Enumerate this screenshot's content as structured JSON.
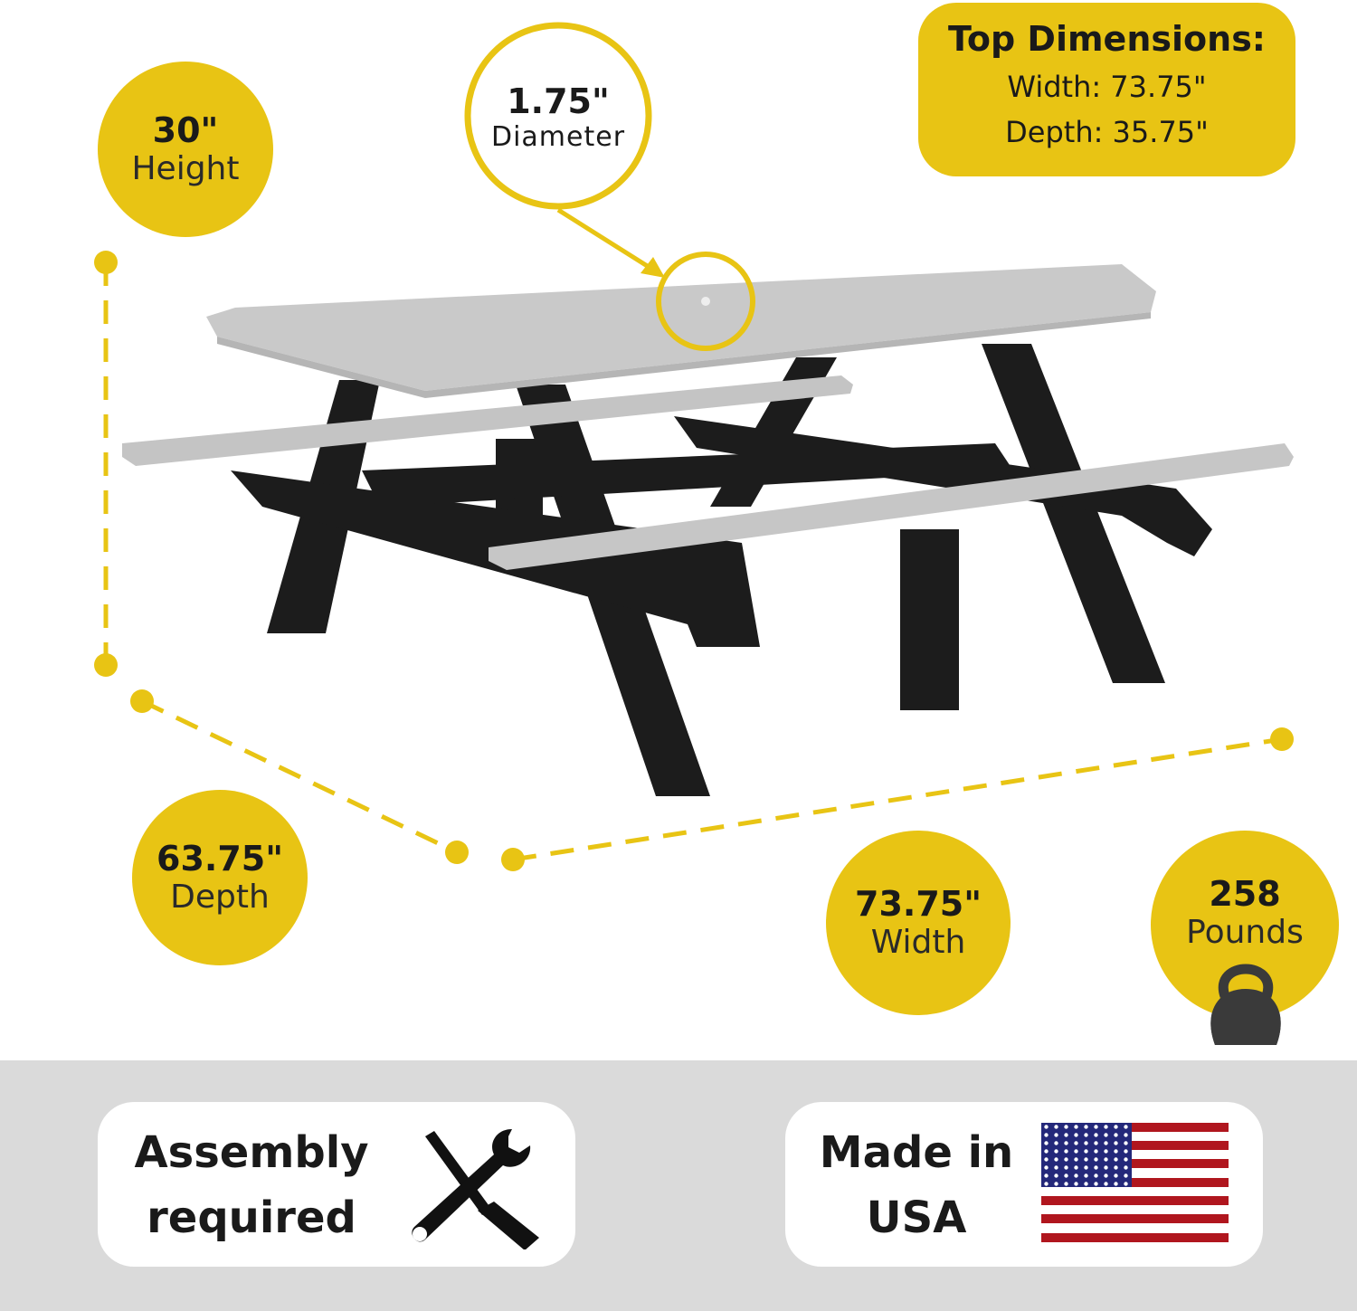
{
  "colors": {
    "accent": "#E8C414",
    "band": "#DADADA",
    "tabletop": "#C9C9C9",
    "frame": "#1c1c1c"
  },
  "height": {
    "value": "30\"",
    "label": "Height"
  },
  "diameter": {
    "value": "1.75\"",
    "label": "Diameter"
  },
  "top_dimensions": {
    "title": "Top Dimensions:",
    "width": "Width: 73.75\"",
    "depth": "Depth: 35.75\""
  },
  "depth": {
    "value": "63.75\"",
    "label": "Depth"
  },
  "width": {
    "value": "73.75\"",
    "label": "Width"
  },
  "weight": {
    "value": "258",
    "label": "Pounds",
    "icon": "kettlebell-icon"
  },
  "assembly": {
    "line1": "Assembly",
    "line2": "required",
    "icon": "tools-icon"
  },
  "origin": {
    "line1": "Made in",
    "line2": "USA",
    "icon": "us-flag-icon"
  }
}
